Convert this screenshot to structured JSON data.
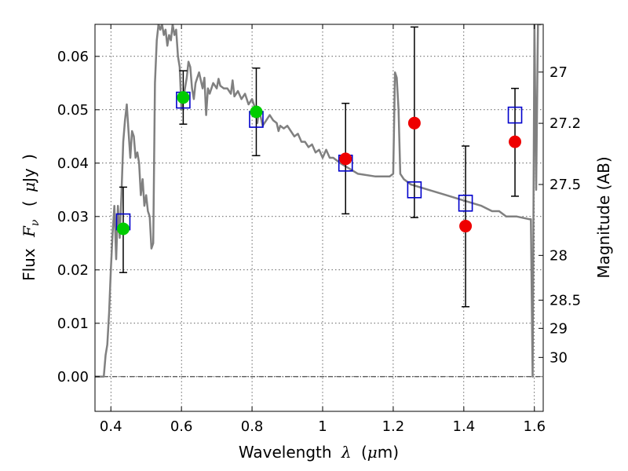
{
  "chart_data": {
    "type": "scatter",
    "xlabel_text": "Wavelength",
    "xlabel_symbol": "λ",
    "xlabel_unit_open": "(",
    "xlabel_unit_mu": "μ",
    "xlabel_unit_rest": "m)",
    "ylabel_text": "Flux",
    "ylabel_symbol_main": "F",
    "ylabel_symbol_sub": "ν",
    "ylabel_unit_open": "(",
    "ylabel_unit_mu": "μ",
    "ylabel_unit_rest": "Jy",
    "ylabel_unit_close": ")",
    "ylabel_right": "Magnitude (AB)",
    "xlim": [
      0.355,
      1.625
    ],
    "ylim": [
      -0.0065,
      0.066
    ],
    "x_ticks": [
      {
        "value": 0.4,
        "label": "0.4"
      },
      {
        "value": 0.6,
        "label": "0.6"
      },
      {
        "value": 0.8,
        "label": "0.8"
      },
      {
        "value": 1.0,
        "label": "1"
      },
      {
        "value": 1.2,
        "label": "1.2"
      },
      {
        "value": 1.4,
        "label": "1.4"
      },
      {
        "value": 1.6,
        "label": "1.6"
      }
    ],
    "y_ticks": [
      {
        "value": 0.0,
        "label": "0.00"
      },
      {
        "value": 0.01,
        "label": "0.01"
      },
      {
        "value": 0.02,
        "label": "0.02"
      },
      {
        "value": 0.03,
        "label": "0.03"
      },
      {
        "value": 0.04,
        "label": "0.04"
      },
      {
        "value": 0.05,
        "label": "0.05"
      },
      {
        "value": 0.06,
        "label": "0.06"
      }
    ],
    "mag_ticks": [
      {
        "value": 27,
        "label": "27"
      },
      {
        "value": 27.2,
        "label": "27.2"
      },
      {
        "value": 27.5,
        "label": "27.5"
      },
      {
        "value": 28,
        "label": "28"
      },
      {
        "value": 28.5,
        "label": "28.5"
      },
      {
        "value": 29,
        "label": "29"
      },
      {
        "value": 30,
        "label": "30"
      }
    ],
    "grid": true,
    "zero_line": true,
    "colors": {
      "model": "#808080",
      "model_flux": "#0000cc",
      "observed_detected": "#00cc00",
      "observed_other": "#ee0000",
      "errorbar": "#000000"
    },
    "model_spectrum": {
      "x": [
        0.355,
        0.38,
        0.385,
        0.39,
        0.395,
        0.4,
        0.405,
        0.41,
        0.415,
        0.42,
        0.425,
        0.43,
        0.435,
        0.44,
        0.445,
        0.45,
        0.455,
        0.46,
        0.465,
        0.47,
        0.475,
        0.48,
        0.485,
        0.49,
        0.495,
        0.5,
        0.505,
        0.51,
        0.515,
        0.52,
        0.525,
        0.53,
        0.535,
        0.54,
        0.545,
        0.55,
        0.555,
        0.56,
        0.565,
        0.57,
        0.575,
        0.58,
        0.585,
        0.59,
        0.595,
        0.6,
        0.605,
        0.61,
        0.615,
        0.62,
        0.625,
        0.63,
        0.635,
        0.64,
        0.65,
        0.66,
        0.665,
        0.67,
        0.675,
        0.68,
        0.69,
        0.7,
        0.705,
        0.71,
        0.72,
        0.73,
        0.74,
        0.745,
        0.75,
        0.76,
        0.77,
        0.78,
        0.79,
        0.8,
        0.81,
        0.815,
        0.82,
        0.83,
        0.84,
        0.85,
        0.86,
        0.87,
        0.875,
        0.88,
        0.89,
        0.9,
        0.91,
        0.92,
        0.93,
        0.94,
        0.95,
        0.96,
        0.97,
        0.98,
        0.99,
        1.0,
        1.01,
        1.02,
        1.03,
        1.05,
        1.1,
        1.15,
        1.19,
        1.2,
        1.205,
        1.21,
        1.215,
        1.22,
        1.23,
        1.25,
        1.3,
        1.35,
        1.4,
        1.45,
        1.48,
        1.5,
        1.52,
        1.55,
        1.585,
        1.59,
        1.595,
        1.6,
        1.605,
        1.61,
        1.615,
        1.62
      ],
      "y": [
        0.0,
        0.0,
        0.004,
        0.006,
        0.012,
        0.02,
        0.027,
        0.032,
        0.022,
        0.032,
        0.026,
        0.034,
        0.044,
        0.048,
        0.051,
        0.046,
        0.041,
        0.046,
        0.045,
        0.041,
        0.042,
        0.04,
        0.034,
        0.037,
        0.032,
        0.034,
        0.031,
        0.03,
        0.024,
        0.025,
        0.055,
        0.063,
        0.066,
        0.065,
        0.066,
        0.064,
        0.065,
        0.062,
        0.064,
        0.063,
        0.066,
        0.064,
        0.065,
        0.06,
        0.058,
        0.05,
        0.052,
        0.054,
        0.056,
        0.059,
        0.058,
        0.054,
        0.052,
        0.055,
        0.057,
        0.054,
        0.056,
        0.049,
        0.054,
        0.053,
        0.055,
        0.054,
        0.0558,
        0.0545,
        0.054,
        0.054,
        0.053,
        0.0555,
        0.0525,
        0.0535,
        0.052,
        0.053,
        0.051,
        0.052,
        0.05,
        0.0475,
        0.05,
        0.047,
        0.048,
        0.049,
        0.048,
        0.0475,
        0.046,
        0.047,
        0.0465,
        0.047,
        0.046,
        0.045,
        0.0455,
        0.044,
        0.044,
        0.043,
        0.0435,
        0.042,
        0.0425,
        0.041,
        0.0425,
        0.041,
        0.041,
        0.04,
        0.038,
        0.0375,
        0.0375,
        0.038,
        0.057,
        0.056,
        0.05,
        0.038,
        0.037,
        0.036,
        0.035,
        0.034,
        0.033,
        0.032,
        0.031,
        0.031,
        0.03,
        0.03,
        0.0295,
        0.0295,
        0.0,
        0.066,
        0.035,
        0.066,
        0.066,
        0.066
      ]
    },
    "points": [
      {
        "x": 0.435,
        "model": 0.029,
        "observed": 0.0277,
        "err_lo": 0.0195,
        "err_hi": 0.0355,
        "marker": "green"
      },
      {
        "x": 0.605,
        "model": 0.0518,
        "observed": 0.0523,
        "err_lo": 0.0473,
        "err_hi": 0.0573,
        "marker": "green"
      },
      {
        "x": 0.812,
        "model": 0.0482,
        "observed": 0.0496,
        "err_lo": 0.0414,
        "err_hi": 0.0578,
        "marker": "green"
      },
      {
        "x": 1.065,
        "model": 0.04,
        "observed": 0.0408,
        "err_lo": 0.0305,
        "err_hi": 0.0512,
        "marker": "red"
      },
      {
        "x": 1.26,
        "model": 0.035,
        "observed": 0.0475,
        "err_lo": 0.0298,
        "err_hi": 0.0655,
        "marker": "red"
      },
      {
        "x": 1.405,
        "model": 0.0325,
        "observed": 0.0282,
        "err_lo": 0.0131,
        "err_hi": 0.0432,
        "marker": "red"
      },
      {
        "x": 1.545,
        "model": 0.049,
        "observed": 0.044,
        "err_lo": 0.0338,
        "err_hi": 0.054,
        "marker": "red"
      }
    ]
  }
}
